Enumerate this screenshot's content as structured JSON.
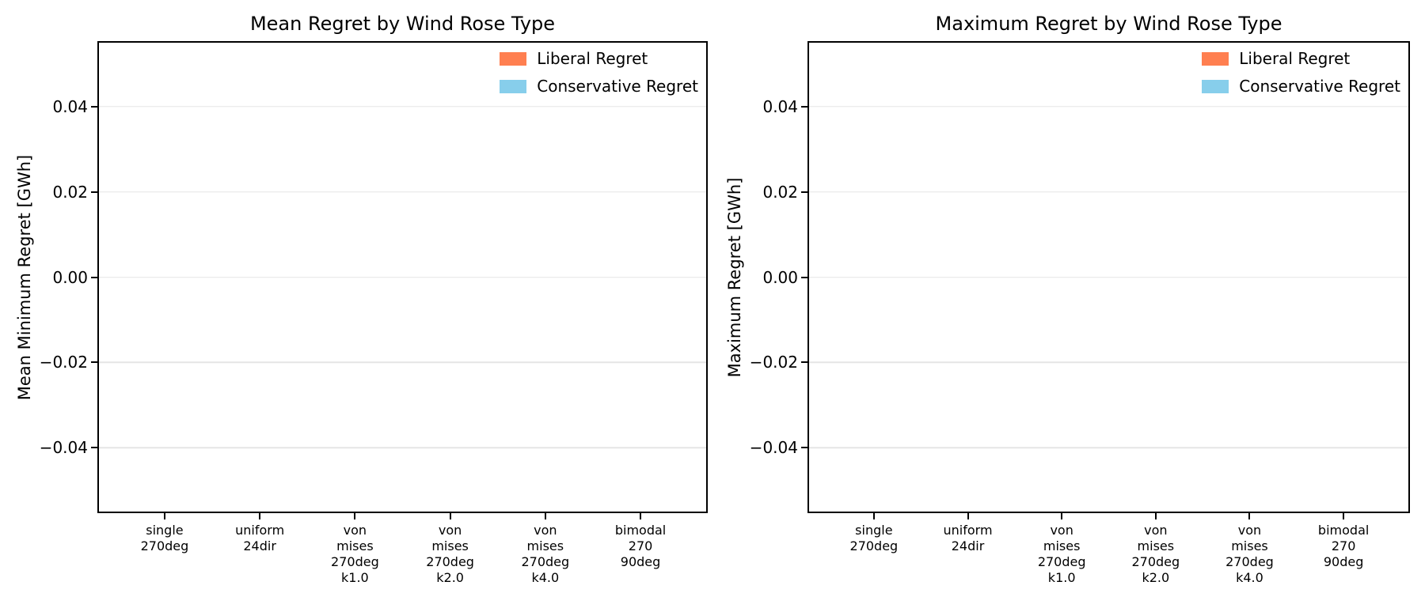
{
  "figure": {
    "background_color": "#ffffff",
    "spine_color": "#000000",
    "grid_color": "#e5e5e5",
    "text_color": "#000000"
  },
  "chart_data": [
    {
      "type": "bar",
      "title": "Mean Regret by Wind Rose Type",
      "xlabel": "",
      "ylabel": "Mean Minimum Regret [GWh]",
      "categories": [
        "single\n270deg",
        "uniform\n24dir",
        "von\nmises\n270deg\nk1.0",
        "von\nmises\n270deg\nk2.0",
        "von\nmises\n270deg\nk4.0",
        "bimodal\n270\n90deg"
      ],
      "series": [
        {
          "name": "Liberal Regret",
          "color": "#FF7F50",
          "values": [
            0,
            0,
            0,
            0,
            0,
            0
          ]
        },
        {
          "name": "Conservative Regret",
          "color": "#87CEEB",
          "values": [
            0,
            0,
            0,
            0,
            0,
            0
          ]
        }
      ],
      "ylim": [
        -0.055,
        0.055
      ],
      "xlim": [
        -0.69,
        5.69
      ],
      "yticks": {
        "values": [
          0.04,
          0.02,
          0.0,
          -0.02,
          -0.04
        ],
        "labels": [
          "0.04",
          "0.02",
          "0.00",
          "−0.02",
          "−0.04"
        ]
      },
      "grid": "horizontal",
      "legend_position": "upper right",
      "bar_group_width": 0.8
    },
    {
      "type": "bar",
      "title": "Maximum Regret by Wind Rose Type",
      "xlabel": "",
      "ylabel": "Maximum Regret [GWh]",
      "categories": [
        "single\n270deg",
        "uniform\n24dir",
        "von\nmises\n270deg\nk1.0",
        "von\nmises\n270deg\nk2.0",
        "von\nmises\n270deg\nk4.0",
        "bimodal\n270\n90deg"
      ],
      "series": [
        {
          "name": "Liberal Regret",
          "color": "#FF7F50",
          "values": [
            0,
            0,
            0,
            0,
            0,
            0
          ]
        },
        {
          "name": "Conservative Regret",
          "color": "#87CEEB",
          "values": [
            0,
            0,
            0,
            0,
            0,
            0
          ]
        }
      ],
      "ylim": [
        -0.055,
        0.055
      ],
      "xlim": [
        -0.69,
        5.69
      ],
      "yticks": {
        "values": [
          0.04,
          0.02,
          0.0,
          -0.02,
          -0.04
        ],
        "labels": [
          "0.04",
          "0.02",
          "0.00",
          "−0.02",
          "−0.04"
        ]
      },
      "grid": "horizontal",
      "legend_position": "upper right",
      "bar_group_width": 0.8
    }
  ]
}
